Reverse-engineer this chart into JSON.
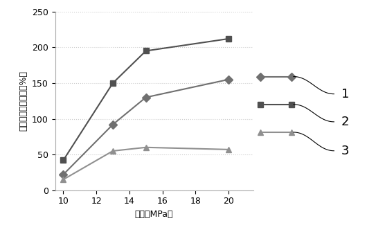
{
  "x": [
    10,
    13,
    15,
    20
  ],
  "series1": [
    22,
    92,
    130,
    155
  ],
  "series2": [
    42,
    150,
    195,
    212
  ],
  "series3": [
    15,
    55,
    60,
    57
  ],
  "series1_color": "#707070",
  "series2_color": "#505050",
  "series3_color": "#909090",
  "marker1": "D",
  "marker2": "s",
  "marker3": "^",
  "xlabel": "压力（MPa）",
  "ylabel": "水测渗透率变化率（%）",
  "xlim": [
    9.5,
    21.5
  ],
  "ylim": [
    0,
    250
  ],
  "yticks": [
    0,
    50,
    100,
    150,
    200,
    250
  ],
  "xticks": [
    10,
    12,
    14,
    16,
    18,
    20
  ],
  "legend_labels": [
    "1",
    "2",
    "3"
  ],
  "background_color": "#ffffff",
  "grid_color": "#cccccc",
  "line_width": 1.5,
  "marker_size": 6
}
